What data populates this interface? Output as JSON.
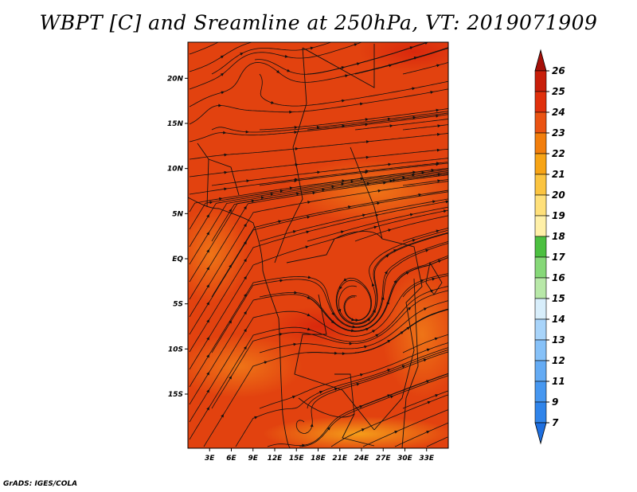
{
  "title": "WBPT [C] and Sreamline at 250hPa, VT: 2019071909",
  "credit": "GrADS: IGES/COLA",
  "map": {
    "lon_range": [
      0,
      36
    ],
    "lat_range": [
      -21,
      24
    ],
    "lon_ticks": [
      "3E",
      "6E",
      "9E",
      "12E",
      "15E",
      "18E",
      "21E",
      "24E",
      "27E",
      "30E",
      "33E"
    ],
    "lat_ticks": [
      "20N",
      "15N",
      "10N",
      "5N",
      "EQ",
      "5S",
      "10S",
      "15S"
    ],
    "field": "wet-bulb potential temperature",
    "field_color_dominant": "#e0400f"
  },
  "colorbar": {
    "labels": [
      "7",
      "9",
      "11",
      "12",
      "13",
      "14",
      "15",
      "16",
      "17",
      "18",
      "19",
      "20",
      "21",
      "22",
      "23",
      "24",
      "25",
      "26"
    ],
    "colors": [
      "#1e6fe0",
      "#2f84ea",
      "#4697f0",
      "#64abf4",
      "#86c1f8",
      "#a8d4fa",
      "#d8eefb",
      "#b8e8a8",
      "#86d878",
      "#4cc040",
      "#fff0a8",
      "#ffe07a",
      "#fbc440",
      "#f7a415",
      "#f27e0c",
      "#ea5312",
      "#e0300c",
      "#c81e0a",
      "#a50f08"
    ]
  }
}
